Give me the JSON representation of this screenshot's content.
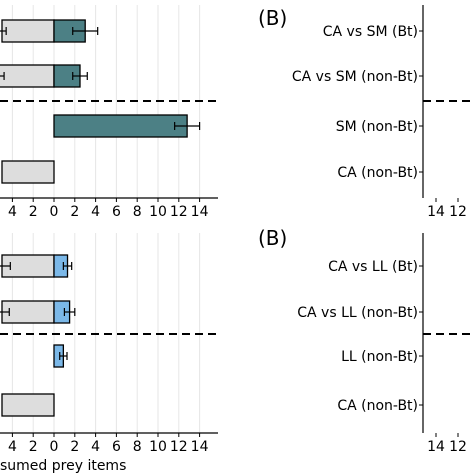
{
  "chart_data": [
    {
      "type": "bar",
      "panel": "top-left",
      "orientation": "horizontal",
      "categories": [
        "CA vs SM (Bt)",
        "CA vs SM (non-Bt)",
        "SM (non-Bt)",
        "CA (non-Bt)"
      ],
      "series": [
        {
          "color": "#dddddd",
          "values": [
            -5.0,
            -5.5,
            0,
            -5.0
          ],
          "errors": [
            0.4,
            0.7,
            0,
            0
          ]
        },
        {
          "color": "#4c8085",
          "values": [
            3.0,
            2.5,
            12.8,
            0
          ],
          "errors": [
            1.2,
            0.7,
            1.2,
            0
          ]
        }
      ],
      "xlim": [
        -4.7,
        15.4
      ],
      "xticks": [
        -4,
        -2,
        0,
        2,
        4,
        6,
        8,
        10,
        12,
        14
      ],
      "xticklabels": [
        "4",
        "2",
        "0",
        "2",
        "4",
        "6",
        "8",
        "10",
        "12",
        "14"
      ],
      "grid": true,
      "divider_after_category": 1
    },
    {
      "type": "bar",
      "panel": "bottom-left",
      "orientation": "horizontal",
      "categories": [
        "CA vs LL (Bt)",
        "CA vs LL (non-Bt)",
        "LL (non-Bt)",
        "CA (non-Bt)"
      ],
      "series": [
        {
          "color": "#dddddd",
          "values": [
            -5.0,
            -5.0,
            0,
            -5.0
          ],
          "errors": [
            0.8,
            0.7,
            0,
            0
          ]
        },
        {
          "color": "#7bb8e8",
          "values": [
            1.3,
            1.5,
            0.9,
            0
          ],
          "errors": [
            0.4,
            0.5,
            0.35,
            0
          ]
        }
      ],
      "xlim": [
        -4.7,
        15.4
      ],
      "xticks": [
        -4,
        -2,
        0,
        2,
        4,
        6,
        8,
        10,
        12,
        14
      ],
      "xticklabels": [
        "4",
        "2",
        "0",
        "2",
        "4",
        "6",
        "8",
        "10",
        "12",
        "14"
      ],
      "xlabel": "sumed prey items",
      "grid": true,
      "divider_after_category": 1
    },
    {
      "type": "bar",
      "panel": "top-right",
      "orientation": "horizontal",
      "title": "(B)",
      "categories": [
        "CA vs SM (Bt)",
        "CA vs SM (non-Bt)",
        "SM (non-Bt)",
        "CA (non-Bt)"
      ],
      "xticklabels": [
        "14",
        "12"
      ],
      "divider_after_category": 1
    },
    {
      "type": "bar",
      "panel": "bottom-right",
      "orientation": "horizontal",
      "title": "(B)",
      "categories": [
        "CA vs LL (Bt)",
        "CA vs LL (non-Bt)",
        "LL (non-Bt)",
        "CA (non-Bt)"
      ],
      "xticklabels": [
        "14",
        "12"
      ],
      "divider_after_category": 1
    }
  ]
}
